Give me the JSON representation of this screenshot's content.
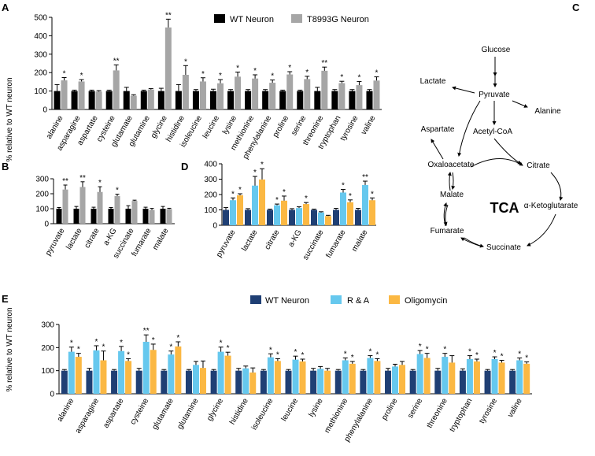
{
  "colors": {
    "wt": "#000000",
    "t8993g": "#a6a6a6",
    "e_wt": "#1f3f74",
    "ra": "#66c8ee",
    "oligo": "#fbb843"
  },
  "panel_labels": {
    "A": "A",
    "B": "B",
    "C": "C",
    "D": "D",
    "E": "E"
  },
  "ylabel_A": "%  relative to WT neuron",
  "ylabel_E": "%  relative to WT neuron",
  "chart_data": [
    {
      "id": "A",
      "type": "bar",
      "ylim": [
        0,
        500
      ],
      "yticks": [
        0,
        100,
        200,
        300,
        400,
        500
      ],
      "categories": [
        "alanine",
        "asparagine",
        "aspartate",
        "cysteine",
        "glutamate",
        "glutamine",
        "glycine",
        "histidine",
        "isoleucine",
        "leucine",
        "lysine",
        "methionine",
        "phenylalanine",
        "proline",
        "serine",
        "threonine",
        "tryptophan",
        "tyrosine",
        "valine"
      ],
      "series": [
        {
          "name": "WT Neuron",
          "values": [
            100,
            100,
            100,
            100,
            100,
            100,
            100,
            100,
            100,
            100,
            100,
            100,
            100,
            100,
            100,
            100,
            100,
            100,
            100
          ],
          "errors": [
            35,
            5,
            5,
            5,
            20,
            5,
            15,
            35,
            8,
            10,
            8,
            8,
            8,
            5,
            5,
            20,
            8,
            8,
            8
          ]
        },
        {
          "name": "T8993G Neuron",
          "values": [
            158,
            152,
            97,
            212,
            75,
            108,
            445,
            188,
            152,
            142,
            178,
            168,
            145,
            190,
            165,
            210,
            143,
            132,
            157
          ],
          "errors": [
            15,
            10,
            5,
            30,
            5,
            5,
            45,
            50,
            20,
            20,
            25,
            20,
            15,
            15,
            15,
            20,
            10,
            20,
            20
          ]
        }
      ],
      "significance": [
        "*",
        "*",
        "",
        "**",
        "",
        "",
        "**",
        "*",
        "*",
        "*",
        "*",
        "*",
        "*",
        "*",
        "*",
        "**",
        "*",
        "*",
        "*"
      ]
    },
    {
      "id": "B",
      "type": "bar",
      "ylim": [
        0,
        300
      ],
      "yticks": [
        0,
        100,
        200,
        300
      ],
      "categories": [
        "pyruvate",
        "lactate",
        "citrate",
        "a-KG",
        "succinate",
        "fumarate",
        "malate"
      ],
      "series": [
        {
          "name": "WT Neuron",
          "values": [
            100,
            100,
            100,
            100,
            100,
            100,
            100
          ],
          "errors": [
            8,
            15,
            10,
            8,
            20,
            10,
            15
          ]
        },
        {
          "name": "T8993G Neuron",
          "values": [
            228,
            245,
            212,
            185,
            152,
            92,
            98
          ],
          "errors": [
            30,
            35,
            35,
            12,
            5,
            10,
            5
          ]
        }
      ],
      "significance": [
        "**",
        "**",
        "*",
        "*",
        "",
        "",
        ""
      ]
    },
    {
      "id": "D",
      "type": "bar",
      "ylim": [
        0,
        400
      ],
      "yticks": [
        0,
        100,
        200,
        300,
        400
      ],
      "categories": [
        "pyruvate",
        "lactate",
        "citrate",
        "a-KG",
        "succinate",
        "fumarate",
        "malate"
      ],
      "series": [
        {
          "name": "WT Neuron",
          "values": [
            100,
            100,
            100,
            100,
            100,
            100,
            100
          ],
          "errors": [
            15,
            8,
            5,
            8,
            5,
            10,
            10
          ]
        },
        {
          "name": "R & A",
          "values": [
            163,
            258,
            130,
            112,
            83,
            213,
            262
          ],
          "errors": [
            15,
            60,
            8,
            8,
            5,
            20,
            25
          ]
        },
        {
          "name": "Oligomycin",
          "values": [
            195,
            298,
            160,
            138,
            60,
            150,
            163
          ],
          "errors": [
            10,
            70,
            30,
            10,
            5,
            15,
            15
          ]
        }
      ],
      "significance": [
        [
          "",
          "*",
          "*"
        ],
        [
          "",
          "*",
          "*"
        ],
        [
          "",
          "*",
          "*"
        ],
        [
          "",
          "",
          "*"
        ],
        [
          "",
          "",
          ""
        ],
        [
          "",
          "*",
          "*"
        ],
        [
          "",
          "**",
          "*"
        ]
      ]
    },
    {
      "id": "E",
      "type": "bar",
      "ylim": [
        0,
        300
      ],
      "yticks": [
        0,
        100,
        200,
        300
      ],
      "categories": [
        "alanine",
        "asparagine",
        "aspartate",
        "cysteine",
        "glutamate",
        "glutamine",
        "glycine",
        "histidine",
        "isoleucine",
        "leucine",
        "lysine",
        "methionine",
        "phenylalanine",
        "proline",
        "serine",
        "threonine",
        "tryptophan",
        "tyrosine",
        "valine"
      ],
      "series": [
        {
          "name": "WT Neuron",
          "values": [
            100,
            100,
            100,
            100,
            100,
            100,
            100,
            100,
            100,
            100,
            100,
            100,
            100,
            100,
            100,
            100,
            100,
            100,
            100
          ],
          "errors": [
            5,
            10,
            5,
            10,
            5,
            5,
            5,
            10,
            5,
            5,
            10,
            5,
            5,
            10,
            5,
            10,
            8,
            5,
            5
          ]
        },
        {
          "name": "R & A",
          "values": [
            182,
            188,
            185,
            225,
            170,
            125,
            182,
            110,
            158,
            148,
            108,
            145,
            155,
            118,
            172,
            160,
            150,
            150,
            145
          ],
          "errors": [
            20,
            20,
            20,
            30,
            15,
            15,
            20,
            10,
            15,
            15,
            10,
            10,
            10,
            10,
            15,
            15,
            15,
            10,
            10
          ]
        },
        {
          "name": "Oligomycin",
          "values": [
            160,
            145,
            142,
            190,
            205,
            112,
            165,
            92,
            142,
            140,
            100,
            130,
            142,
            125,
            155,
            135,
            140,
            135,
            130
          ],
          "errors": [
            15,
            40,
            10,
            25,
            20,
            30,
            15,
            20,
            10,
            10,
            10,
            10,
            10,
            15,
            20,
            30,
            10,
            10,
            8
          ]
        }
      ],
      "significance": [
        [
          "",
          "*",
          "*"
        ],
        [
          "",
          "*",
          "*"
        ],
        [
          "",
          "*",
          "*"
        ],
        [
          "",
          "**",
          "*"
        ],
        [
          "",
          "*",
          "*"
        ],
        [
          "",
          "",
          ""
        ],
        [
          "",
          "*",
          "*"
        ],
        [
          "",
          "",
          ""
        ],
        [
          "",
          "*",
          "*"
        ],
        [
          "",
          "*",
          "*"
        ],
        [
          "",
          "",
          ""
        ],
        [
          "",
          "*",
          "*"
        ],
        [
          "",
          "*",
          "*"
        ],
        [
          "",
          "",
          ""
        ],
        [
          "",
          "*",
          "*"
        ],
        [
          "",
          "*",
          ""
        ],
        [
          "",
          "*",
          "*"
        ],
        [
          "",
          "*",
          "*"
        ],
        [
          "",
          "*",
          "*"
        ]
      ]
    },
    {
      "id": "C",
      "type": "diagram",
      "title": "TCA",
      "nodes": [
        "Glucose",
        "Lactate",
        "Pyruvate",
        "Alanine",
        "Acetyl-CoA",
        "Aspartate",
        "Oxaloacetate",
        "Citrate",
        "Malate",
        "α-Ketoglutarate",
        "Fumarate",
        "Succinate"
      ]
    }
  ]
}
